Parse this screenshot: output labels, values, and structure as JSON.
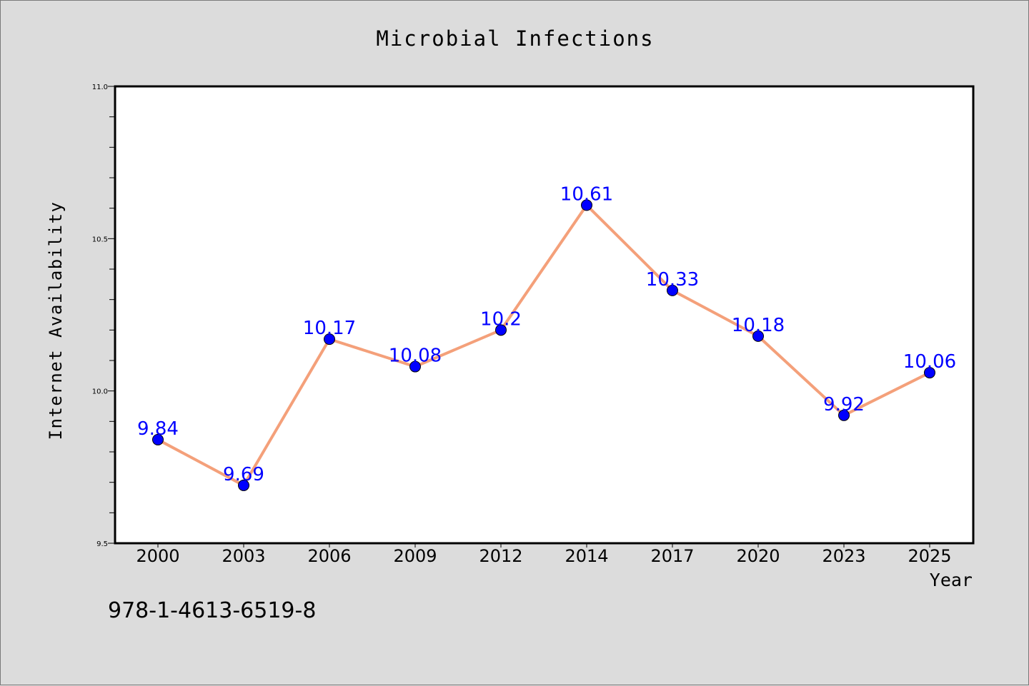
{
  "colors": {
    "background": "#dcdcdc",
    "plot_background": "#ffffff",
    "line": "#f4a07a",
    "marker": "#0000ff",
    "data_label": "#0000ff",
    "text": "#000000"
  },
  "footer_code": "978-1-4613-6519-8",
  "chart_data": {
    "type": "line",
    "title": "Microbial Infections",
    "xlabel": "Year",
    "ylabel": "Internet Availability",
    "categories": [
      "2000",
      "2003",
      "2006",
      "2009",
      "2012",
      "2014",
      "2017",
      "2020",
      "2023",
      "2025"
    ],
    "values": [
      9.84,
      9.69,
      10.17,
      10.08,
      10.2,
      10.61,
      10.33,
      10.18,
      9.92,
      10.06
    ],
    "data_labels": [
      "9.84",
      "9.69",
      "10.17",
      "10.08",
      "10.2",
      "10.61",
      "10.33",
      "10.18",
      "9.92",
      "10.06"
    ],
    "ylim": [
      9.5,
      11.0
    ],
    "y_ticks": [
      "9.5",
      "10.0",
      "10.5",
      "11.0"
    ],
    "y_tick_values": [
      9.5,
      10.0,
      10.5,
      11.0
    ],
    "y_minor_step": 0.1,
    "grid": false,
    "legend": "none"
  }
}
